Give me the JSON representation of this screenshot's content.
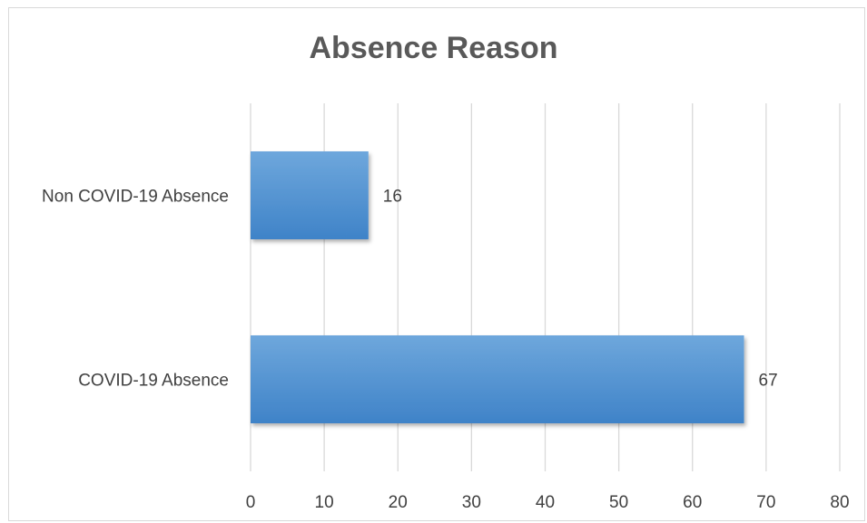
{
  "chart_data": {
    "type": "bar",
    "orientation": "horizontal",
    "title": "Absence Reason",
    "categories": [
      "Non COVID-19 Absence",
      "COVID-19 Absence"
    ],
    "values": [
      16,
      67
    ],
    "xlim": [
      0,
      80
    ],
    "ticks": [
      "0",
      "10",
      "20",
      "30",
      "40",
      "50",
      "60",
      "70",
      "80"
    ],
    "grid": true,
    "legend": "none",
    "bar_color": "#5b9bd5"
  }
}
